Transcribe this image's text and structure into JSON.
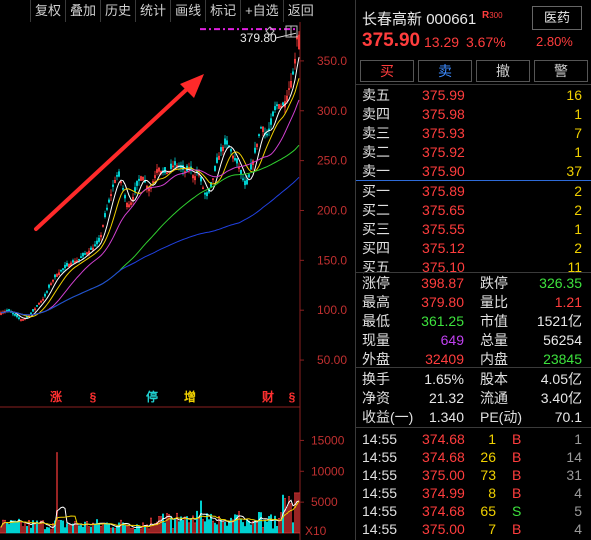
{
  "toolbar": [
    "复权",
    "叠加",
    "历史",
    "统计",
    "画线",
    "标记",
    "+自选",
    "返回"
  ],
  "stock": {
    "name": "长春高新",
    "code": "000661",
    "badge": "R",
    "badge_sub": "300",
    "industry": "医药",
    "price": "375.90",
    "change": "13.29",
    "change_pct": "3.67%",
    "industry_pct": "2.80%"
  },
  "actions": [
    {
      "label": "买",
      "color": "#ff3d3d"
    },
    {
      "label": "卖",
      "color": "#3d8bff"
    },
    {
      "label": "撤",
      "color": "#d0d0d0"
    },
    {
      "label": "警",
      "color": "#d0d0d0"
    }
  ],
  "asks": [
    {
      "label": "卖五",
      "price": "375.99",
      "vol": "16"
    },
    {
      "label": "卖四",
      "price": "375.98",
      "vol": "1"
    },
    {
      "label": "卖三",
      "price": "375.93",
      "vol": "7"
    },
    {
      "label": "卖二",
      "price": "375.92",
      "vol": "1"
    },
    {
      "label": "卖一",
      "price": "375.90",
      "vol": "37"
    }
  ],
  "bids": [
    {
      "label": "买一",
      "price": "375.89",
      "vol": "2"
    },
    {
      "label": "买二",
      "price": "375.65",
      "vol": "2"
    },
    {
      "label": "买三",
      "price": "375.55",
      "vol": "1"
    },
    {
      "label": "买四",
      "price": "375.12",
      "vol": "2"
    },
    {
      "label": "买五",
      "price": "375.10",
      "vol": "11"
    }
  ],
  "stats": [
    [
      {
        "label": "涨停",
        "value": "398.87",
        "color": "red"
      },
      {
        "label": "跌停",
        "value": "326.35",
        "color": "grn"
      }
    ],
    [
      {
        "label": "最高",
        "value": "379.80",
        "color": "red"
      },
      {
        "label": "量比",
        "value": "1.21",
        "color": "red"
      }
    ],
    [
      {
        "label": "最低",
        "value": "361.25",
        "color": "grn"
      },
      {
        "label": "市值",
        "value": "1521亿",
        "color": "wht"
      }
    ],
    [
      {
        "label": "现量",
        "value": "649",
        "color": "pur"
      },
      {
        "label": "总量",
        "value": "56254",
        "color": "wht"
      }
    ],
    [
      {
        "label": "外盘",
        "value": "32409",
        "color": "red"
      },
      {
        "label": "内盘",
        "value": "23845",
        "color": "grn"
      }
    ]
  ],
  "fund": [
    [
      {
        "label": "换手",
        "value": "1.65%"
      },
      {
        "label": "股本",
        "value": "4.05亿"
      }
    ],
    [
      {
        "label": "净资",
        "value": "21.32"
      },
      {
        "label": "流通",
        "value": "3.40亿"
      }
    ],
    [
      {
        "label": "收益(一)",
        "value": "1.340"
      },
      {
        "label": "PE(动)",
        "value": "70.1"
      }
    ]
  ],
  "ticks": [
    {
      "time": "14:55",
      "price": "374.68",
      "vol": "1",
      "side": "B",
      "count": "1",
      "color": "red"
    },
    {
      "time": "14:55",
      "price": "374.68",
      "vol": "26",
      "side": "B",
      "count": "14",
      "color": "red"
    },
    {
      "time": "14:55",
      "price": "375.00",
      "vol": "73",
      "side": "B",
      "count": "31",
      "color": "red"
    },
    {
      "time": "14:55",
      "price": "374.99",
      "vol": "8",
      "side": "B",
      "count": "4",
      "color": "red"
    },
    {
      "time": "14:55",
      "price": "374.68",
      "vol": "65",
      "side": "S",
      "count": "5",
      "color": "grn"
    },
    {
      "time": "14:55",
      "price": "375.00",
      "vol": "7",
      "side": "B",
      "count": "4",
      "color": "red"
    }
  ],
  "chart_data": {
    "type": "candlestick",
    "price_axis_ticks": [
      50,
      100,
      150,
      200,
      250,
      300,
      350
    ],
    "price_tick_labels": [
      "50.00",
      "100.0",
      "150.0",
      "200.0",
      "250.0",
      "300.0",
      "350.0"
    ],
    "ylim": [
      30,
      385
    ],
    "high_marker": "379.80",
    "volume_axis_ticks": [
      5000,
      10000,
      15000
    ],
    "volume_tick_labels": [
      "5000",
      "10000",
      "15000"
    ],
    "volume_unit": "X10",
    "events": [
      {
        "label": "涨",
        "color": "#ff3030"
      },
      {
        "label": "§",
        "color": "#ff3030"
      },
      {
        "label": "停",
        "color": "#20d0d0"
      },
      {
        "label": "增",
        "color": "#f0d000"
      },
      {
        "label": "财",
        "color": "#ff3030"
      },
      {
        "label": "§",
        "color": "#ff3030"
      }
    ],
    "colors": {
      "up": "#ff3d3d",
      "down": "#00d0d0",
      "ma5": "#ffffff",
      "ma10": "#f0d000",
      "ma20": "#d040d0",
      "ma60": "#30d030",
      "ma120": "#2040e0"
    }
  }
}
